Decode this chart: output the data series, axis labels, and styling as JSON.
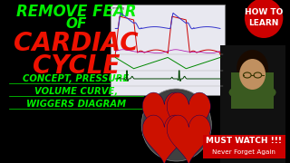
{
  "bg_color": "#000000",
  "title_line1": "REMOVE FEAR",
  "title_line2": "OF",
  "title_line3": "CARDIAC",
  "title_line4": "CYCLE",
  "green_color": "#00ee00",
  "red_color": "#ee1100",
  "subtitle_line1": "CONCEPT, PRESSURE",
  "subtitle_line2": "VOLUME CURVE,",
  "subtitle_line3": "WIGGERS DIAGRAM",
  "subtitle_color": "#00ee00",
  "badge_bg": "#cc0000",
  "badge_text1": "HOW TO",
  "badge_text2": "LEARN",
  "badge_text_color": "#ffffff",
  "must_watch_text": "MUST WATCH !!!",
  "must_watch_color": "#ffffff",
  "must_watch_bg": "#cc0000",
  "never_forget_text": "Never Forget Again",
  "never_forget_color": "#ffffff",
  "wiggers_bg": "#e8e8f0",
  "face_color": "#c09060",
  "shirt_color": "#3a5a20",
  "hair_color": "#1a0a00"
}
